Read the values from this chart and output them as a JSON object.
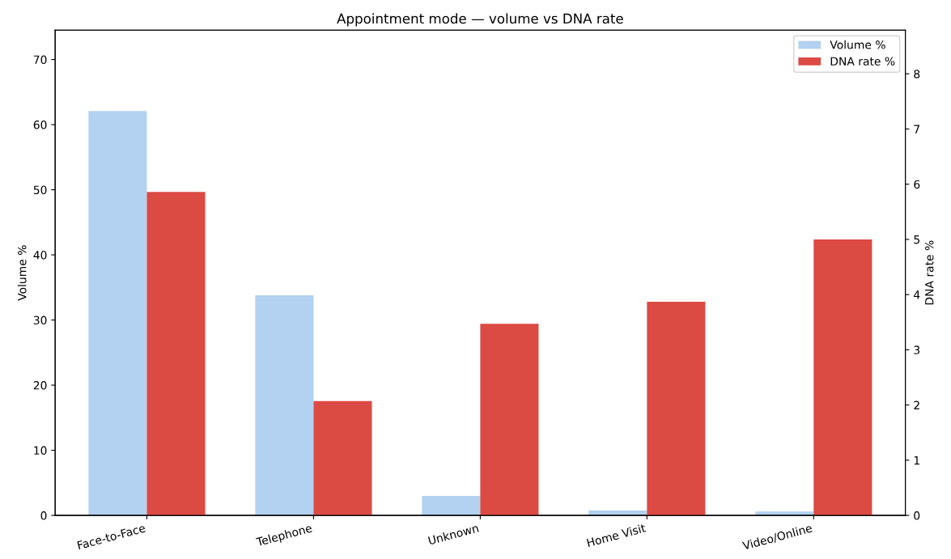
{
  "chart_data": {
    "type": "bar",
    "title": "Appointment mode — volume vs DNA rate",
    "categories": [
      "Face-to-Face",
      "Telephone",
      "Unknown",
      "Home Visit",
      "Video/Online"
    ],
    "series": [
      {
        "name": "Volume %",
        "color": "#b3d1f0",
        "values": [
          62.1,
          33.8,
          3.0,
          0.75,
          0.6
        ]
      },
      {
        "name": "DNA rate %",
        "color": "#dc4a44",
        "axis": "y2",
        "values": [
          5.86,
          2.07,
          3.47,
          3.87,
          5.0
        ]
      }
    ],
    "ylabel": "Volume %",
    "y2label": "DNA rate %",
    "ylim": [
      0,
      74.5
    ],
    "yticks": [
      0,
      10,
      20,
      30,
      40,
      50,
      60,
      70
    ],
    "y2lim": [
      0,
      8.79
    ],
    "y2ticks": [
      0,
      1,
      2,
      3,
      4,
      5,
      6,
      7,
      8
    ],
    "legend": "top right",
    "grid": false
  }
}
